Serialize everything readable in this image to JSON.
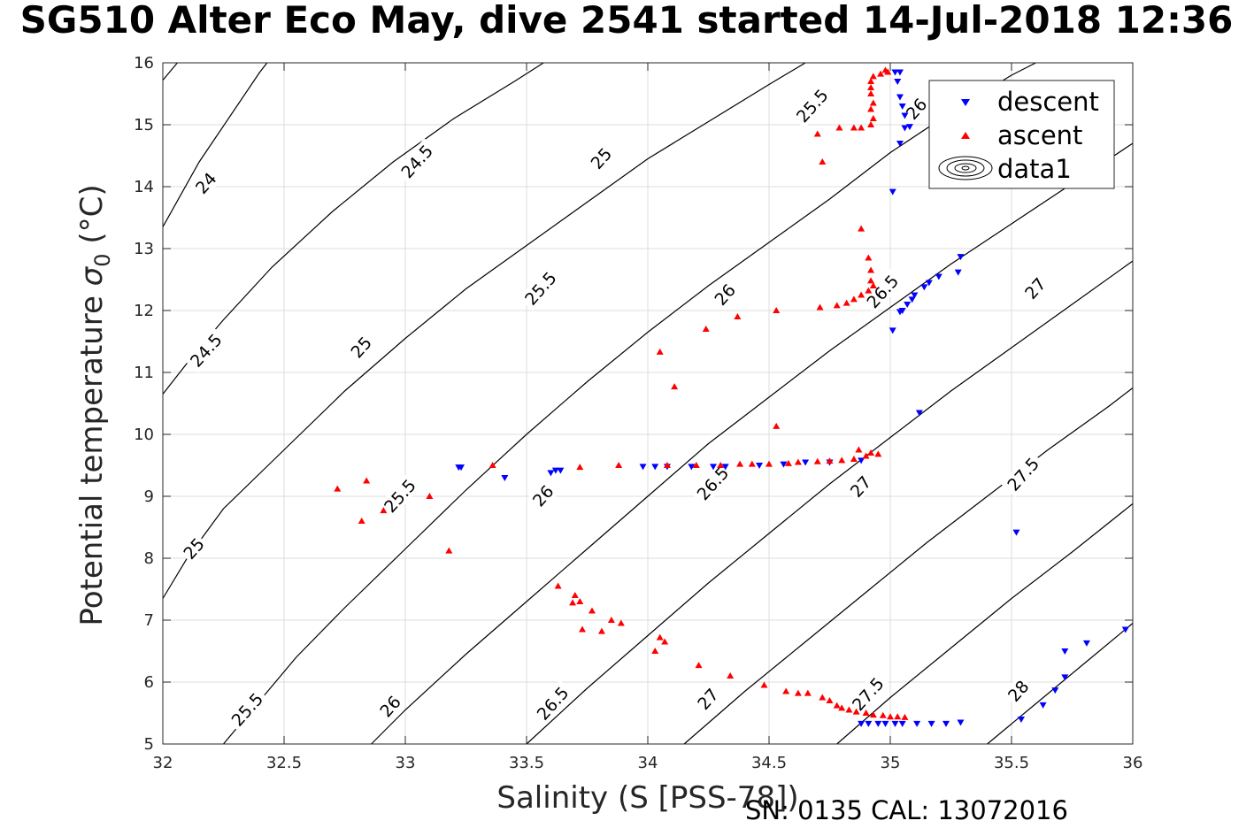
{
  "title": "SG510 Alter Eco May, dive 2541 started 14-Jul-2018 12:36",
  "footer": "SN: 0135  CAL: 13072016",
  "chart_data": {
    "type": "scatter",
    "xlabel": "Salinity (S [PSS-78])",
    "ylabel_text": "Potential temperature ",
    "ylabel_sigma": "σ",
    "ylabel_sub": "0",
    "ylabel_unit": " (°C)",
    "xlim": [
      32,
      36
    ],
    "ylim": [
      5,
      16
    ],
    "xticks": [
      "32",
      "32.5",
      "33",
      "33.5",
      "34",
      "34.5",
      "35",
      "35.5",
      "36"
    ],
    "yticks": [
      "5",
      "6",
      "7",
      "8",
      "9",
      "10",
      "11",
      "12",
      "13",
      "14",
      "15",
      "16"
    ],
    "grid": true,
    "legend_position": "top-right",
    "legend": [
      "descent",
      "ascent",
      "data1"
    ],
    "colors": {
      "descent": "#0000ff",
      "ascent": "#ff0000",
      "contour": "#000000"
    },
    "series": [
      {
        "name": "descent",
        "marker": "triangle-down",
        "points": [
          [
            35.02,
            15.85
          ],
          [
            35.04,
            15.85
          ],
          [
            35.03,
            15.7
          ],
          [
            35.04,
            15.45
          ],
          [
            35.05,
            15.3
          ],
          [
            35.06,
            15.15
          ],
          [
            35.06,
            14.95
          ],
          [
            35.08,
            14.97
          ],
          [
            35.04,
            14.7
          ],
          [
            35.01,
            13.92
          ],
          [
            35.29,
            12.87
          ],
          [
            35.28,
            12.62
          ],
          [
            35.2,
            12.55
          ],
          [
            35.16,
            12.45
          ],
          [
            35.14,
            12.38
          ],
          [
            35.1,
            12.25
          ],
          [
            35.09,
            12.18
          ],
          [
            35.07,
            12.1
          ],
          [
            35.05,
            12.0
          ],
          [
            35.04,
            11.98
          ],
          [
            35.01,
            11.68
          ],
          [
            35.12,
            10.35
          ],
          [
            33.22,
            9.47
          ],
          [
            33.23,
            9.47
          ],
          [
            33.41,
            9.3
          ],
          [
            33.6,
            9.38
          ],
          [
            33.62,
            9.42
          ],
          [
            33.64,
            9.42
          ],
          [
            33.98,
            9.48
          ],
          [
            34.03,
            9.48
          ],
          [
            34.08,
            9.48
          ],
          [
            34.18,
            9.48
          ],
          [
            34.27,
            9.48
          ],
          [
            34.32,
            9.48
          ],
          [
            34.46,
            9.5
          ],
          [
            34.56,
            9.52
          ],
          [
            34.65,
            9.55
          ],
          [
            34.75,
            9.55
          ],
          [
            34.88,
            9.58
          ],
          [
            35.52,
            8.42
          ],
          [
            35.97,
            6.85
          ],
          [
            35.81,
            6.63
          ],
          [
            35.72,
            6.5
          ],
          [
            35.72,
            6.08
          ],
          [
            35.68,
            5.87
          ],
          [
            35.63,
            5.63
          ],
          [
            35.54,
            5.4
          ],
          [
            35.29,
            5.35
          ],
          [
            35.23,
            5.33
          ],
          [
            35.17,
            5.33
          ],
          [
            35.11,
            5.33
          ],
          [
            35.05,
            5.33
          ],
          [
            35.02,
            5.33
          ],
          [
            34.98,
            5.33
          ],
          [
            34.95,
            5.33
          ],
          [
            34.91,
            5.33
          ],
          [
            34.88,
            5.33
          ]
        ]
      },
      {
        "name": "ascent",
        "marker": "triangle-up",
        "points": [
          [
            34.96,
            15.82
          ],
          [
            34.98,
            15.88
          ],
          [
            34.99,
            15.85
          ],
          [
            34.93,
            15.78
          ],
          [
            34.92,
            15.7
          ],
          [
            34.92,
            15.6
          ],
          [
            34.92,
            15.5
          ],
          [
            34.93,
            15.35
          ],
          [
            34.92,
            15.25
          ],
          [
            34.93,
            15.1
          ],
          [
            34.92,
            15.0
          ],
          [
            34.88,
            14.95
          ],
          [
            34.85,
            14.95
          ],
          [
            34.79,
            14.95
          ],
          [
            34.7,
            14.85
          ],
          [
            34.72,
            14.4
          ],
          [
            34.88,
            13.32
          ],
          [
            34.91,
            12.85
          ],
          [
            34.92,
            12.65
          ],
          [
            34.92,
            12.48
          ],
          [
            34.93,
            12.4
          ],
          [
            34.91,
            12.32
          ],
          [
            34.88,
            12.25
          ],
          [
            34.85,
            12.18
          ],
          [
            34.82,
            12.12
          ],
          [
            34.78,
            12.08
          ],
          [
            34.71,
            12.05
          ],
          [
            34.53,
            12.0
          ],
          [
            34.37,
            11.9
          ],
          [
            34.24,
            11.7
          ],
          [
            34.05,
            11.33
          ],
          [
            34.11,
            10.77
          ],
          [
            34.53,
            10.13
          ],
          [
            34.87,
            9.75
          ],
          [
            34.92,
            9.7
          ],
          [
            34.95,
            9.68
          ],
          [
            34.9,
            9.65
          ],
          [
            34.85,
            9.6
          ],
          [
            34.8,
            9.58
          ],
          [
            34.75,
            9.57
          ],
          [
            34.7,
            9.56
          ],
          [
            34.62,
            9.55
          ],
          [
            34.58,
            9.53
          ],
          [
            34.5,
            9.52
          ],
          [
            34.43,
            9.52
          ],
          [
            34.38,
            9.52
          ],
          [
            34.3,
            9.5
          ],
          [
            34.2,
            9.5
          ],
          [
            34.08,
            9.5
          ],
          [
            33.88,
            9.5
          ],
          [
            33.72,
            9.47
          ],
          [
            33.36,
            9.5
          ],
          [
            33.1,
            9.0
          ],
          [
            32.72,
            9.12
          ],
          [
            32.84,
            9.25
          ],
          [
            32.82,
            8.6
          ],
          [
            32.91,
            8.77
          ],
          [
            33.18,
            8.12
          ],
          [
            33.63,
            7.55
          ],
          [
            33.7,
            7.4
          ],
          [
            33.69,
            7.28
          ],
          [
            33.72,
            7.3
          ],
          [
            33.77,
            7.15
          ],
          [
            33.85,
            7.0
          ],
          [
            33.89,
            6.95
          ],
          [
            33.73,
            6.85
          ],
          [
            33.81,
            6.82
          ],
          [
            34.05,
            6.72
          ],
          [
            34.07,
            6.65
          ],
          [
            34.03,
            6.5
          ],
          [
            34.21,
            6.27
          ],
          [
            34.34,
            6.1
          ],
          [
            34.48,
            5.95
          ],
          [
            34.57,
            5.85
          ],
          [
            34.62,
            5.82
          ],
          [
            34.66,
            5.82
          ],
          [
            34.72,
            5.75
          ],
          [
            34.75,
            5.7
          ],
          [
            34.78,
            5.62
          ],
          [
            34.8,
            5.58
          ],
          [
            34.83,
            5.55
          ],
          [
            34.86,
            5.52
          ],
          [
            34.9,
            5.5
          ],
          [
            34.93,
            5.47
          ],
          [
            34.97,
            5.46
          ],
          [
            35.0,
            5.44
          ],
          [
            35.03,
            5.44
          ],
          [
            35.06,
            5.43
          ]
        ]
      }
    ],
    "contours": [
      {
        "level": "24",
        "label": "24"
      },
      {
        "level": "24.5",
        "label": "24.5"
      },
      {
        "level": "25",
        "label": "25"
      },
      {
        "level": "25.5",
        "label": "25.5"
      },
      {
        "level": "26",
        "label": "26"
      },
      {
        "level": "26.5",
        "label": "26.5"
      },
      {
        "level": "27",
        "label": "27"
      },
      {
        "level": "27.5",
        "label": "27.5"
      },
      {
        "level": "28",
        "label": "28"
      }
    ],
    "contour_lines": [
      [
        [
          32.0,
          13.35
        ],
        [
          32.15,
          14.4
        ],
        [
          32.4,
          15.85
        ],
        [
          32.43,
          16.0
        ]
      ],
      [
        [
          32.0,
          15.72
        ],
        [
          32.06,
          16.0
        ]
      ],
      [
        [
          32.0,
          10.65
        ],
        [
          32.13,
          11.3
        ],
        [
          32.25,
          11.85
        ],
        [
          32.45,
          12.7
        ],
        [
          32.7,
          13.6
        ],
        [
          32.95,
          14.4
        ],
        [
          33.2,
          15.1
        ],
        [
          33.45,
          15.7
        ],
        [
          33.57,
          16.0
        ]
      ],
      [
        [
          32.0,
          7.35
        ],
        [
          32.1,
          8.0
        ],
        [
          32.25,
          8.8
        ],
        [
          32.5,
          9.75
        ],
        [
          32.75,
          10.7
        ],
        [
          33.0,
          11.55
        ],
        [
          33.25,
          12.35
        ],
        [
          33.5,
          13.05
        ],
        [
          33.75,
          13.75
        ],
        [
          34.0,
          14.45
        ],
        [
          34.25,
          15.05
        ],
        [
          34.5,
          15.65
        ],
        [
          34.65,
          16.0
        ]
      ],
      [
        [
          32.25,
          5.0
        ],
        [
          32.4,
          5.7
        ],
        [
          32.55,
          6.4
        ],
        [
          32.75,
          7.2
        ],
        [
          33.0,
          8.15
        ],
        [
          33.25,
          9.1
        ],
        [
          33.5,
          10.0
        ],
        [
          33.75,
          10.85
        ],
        [
          34.0,
          11.65
        ],
        [
          34.25,
          12.4
        ],
        [
          34.5,
          13.1
        ],
        [
          34.75,
          13.8
        ],
        [
          35.0,
          14.55
        ],
        [
          35.25,
          15.2
        ],
        [
          35.5,
          15.8
        ],
        [
          35.6,
          16.0
        ]
      ],
      [
        [
          32.86,
          5.0
        ],
        [
          33.0,
          5.55
        ],
        [
          33.25,
          6.45
        ],
        [
          33.5,
          7.3
        ],
        [
          33.75,
          8.15
        ],
        [
          34.0,
          9.0
        ],
        [
          34.25,
          9.85
        ],
        [
          34.5,
          10.6
        ],
        [
          34.75,
          11.35
        ],
        [
          35.0,
          12.05
        ],
        [
          35.25,
          12.75
        ],
        [
          35.5,
          13.4
        ],
        [
          35.75,
          14.05
        ],
        [
          36.0,
          14.7
        ]
      ],
      [
        [
          33.5,
          5.0
        ],
        [
          33.75,
          5.9
        ],
        [
          34.0,
          6.75
        ],
        [
          34.25,
          7.6
        ],
        [
          34.5,
          8.4
        ],
        [
          34.75,
          9.2
        ],
        [
          35.0,
          9.95
        ],
        [
          35.25,
          10.7
        ],
        [
          35.5,
          11.4
        ],
        [
          35.75,
          12.1
        ],
        [
          36.0,
          12.8
        ]
      ],
      [
        [
          34.15,
          5.0
        ],
        [
          34.4,
          5.85
        ],
        [
          34.65,
          6.65
        ],
        [
          34.9,
          7.45
        ],
        [
          35.15,
          8.25
        ],
        [
          35.4,
          9.0
        ],
        [
          35.65,
          9.75
        ],
        [
          35.9,
          10.45
        ],
        [
          36.0,
          10.75
        ]
      ],
      [
        [
          34.78,
          5.0
        ],
        [
          35.0,
          5.75
        ],
        [
          35.25,
          6.55
        ],
        [
          35.5,
          7.35
        ],
        [
          35.75,
          8.1
        ],
        [
          36.0,
          8.88
        ]
      ],
      [
        [
          35.4,
          5.0
        ],
        [
          35.6,
          5.65
        ],
        [
          35.8,
          6.3
        ],
        [
          36.0,
          6.95
        ]
      ]
    ],
    "contour_labels": [
      {
        "text": "24",
        "x": 32.18,
        "y": 14.05,
        "angle": -48
      },
      {
        "text": "24.5",
        "x": 33.05,
        "y": 14.4,
        "angle": -48
      },
      {
        "text": "24.5",
        "x": 32.18,
        "y": 11.35,
        "angle": -48
      },
      {
        "text": "25",
        "x": 33.81,
        "y": 14.45,
        "angle": -48
      },
      {
        "text": "25",
        "x": 32.82,
        "y": 11.4,
        "angle": -48
      },
      {
        "text": "25",
        "x": 32.13,
        "y": 8.15,
        "angle": -48
      },
      {
        "text": "25.5",
        "x": 34.68,
        "y": 15.3,
        "angle": -48
      },
      {
        "text": "25.5",
        "x": 33.56,
        "y": 12.35,
        "angle": -48
      },
      {
        "text": "25.5",
        "x": 32.98,
        "y": 9.0,
        "angle": -48
      },
      {
        "text": "25.5",
        "x": 32.35,
        "y": 5.55,
        "angle": -48
      },
      {
        "text": "26",
        "x": 35.11,
        "y": 15.25,
        "angle": -48
      },
      {
        "text": "26",
        "x": 34.32,
        "y": 12.25,
        "angle": -48
      },
      {
        "text": "26",
        "x": 33.57,
        "y": 9.0,
        "angle": -48
      },
      {
        "text": "26",
        "x": 32.94,
        "y": 5.6,
        "angle": -48
      },
      {
        "text": "26.5",
        "x": 34.97,
        "y": 12.3,
        "angle": -48
      },
      {
        "text": "26.5",
        "x": 34.27,
        "y": 9.2,
        "angle": -48
      },
      {
        "text": "26.5",
        "x": 33.61,
        "y": 5.65,
        "angle": -48
      },
      {
        "text": "27",
        "x": 35.6,
        "y": 12.35,
        "angle": -48
      },
      {
        "text": "27",
        "x": 34.88,
        "y": 9.15,
        "angle": -48
      },
      {
        "text": "27",
        "x": 34.25,
        "y": 5.72,
        "angle": -48
      },
      {
        "text": "27.5",
        "x": 35.55,
        "y": 9.35,
        "angle": -48
      },
      {
        "text": "27.5",
        "x": 34.91,
        "y": 5.8,
        "angle": -48
      },
      {
        "text": "28",
        "x": 35.53,
        "y": 5.85,
        "angle": -48
      }
    ]
  }
}
